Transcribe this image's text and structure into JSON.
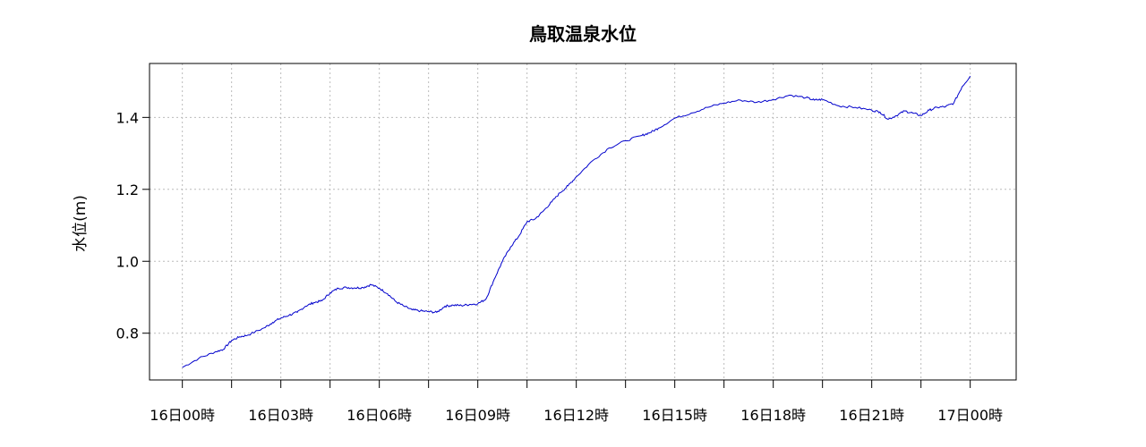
{
  "chart_data": {
    "type": "line",
    "title": "鳥取温泉水位",
    "ylabel": "水位(m)",
    "xlabel": "",
    "xlim_hours": [
      -1,
      25.4
    ],
    "ylim": [
      0.67,
      1.55
    ],
    "yticks": [
      0.8,
      1.0,
      1.2,
      1.4
    ],
    "ytick_labels": [
      "0.8",
      "1.0",
      "1.2",
      "1.4"
    ],
    "xticks_hours": [
      0,
      3,
      6,
      9,
      12,
      15,
      18,
      21,
      24
    ],
    "xtick_labels": [
      "16日00時",
      "16日03時",
      "16日06時",
      "16日09時",
      "16日12時",
      "16日15時",
      "16日18時",
      "16日21時",
      "17日00時"
    ],
    "grid": true,
    "line_color": "#0000cc",
    "series": [
      {
        "x": [
          0,
          0.5,
          1,
          1.25,
          1.5,
          1.75,
          2,
          2.5,
          2.75,
          3,
          3.25,
          3.5,
          3.75,
          4,
          4.25,
          4.5,
          4.75,
          5,
          5.25,
          5.5,
          5.75,
          6,
          6.25,
          6.5,
          6.75,
          7,
          7.25,
          7.5,
          7.75,
          8,
          8.25,
          8.5,
          8.75,
          9,
          9.25,
          9.5,
          9.75,
          10,
          10.25,
          10.5,
          10.75,
          11,
          11.25,
          11.5,
          11.75,
          12,
          12.5,
          13,
          13.5,
          14,
          14.25,
          14.5,
          15,
          15.5,
          16,
          16.5,
          17,
          17.5,
          18,
          18.5,
          19,
          19.25,
          19.5,
          20,
          20.5,
          21,
          21.25,
          21.5,
          21.75,
          22,
          22.25,
          22.5,
          22.75,
          23,
          23.25,
          23.5,
          23.75,
          24
        ],
        "y": [
          0.705,
          0.73,
          0.748,
          0.755,
          0.78,
          0.79,
          0.795,
          0.815,
          0.83,
          0.842,
          0.85,
          0.858,
          0.875,
          0.885,
          0.89,
          0.912,
          0.925,
          0.927,
          0.926,
          0.927,
          0.935,
          0.925,
          0.91,
          0.888,
          0.875,
          0.865,
          0.862,
          0.86,
          0.858,
          0.875,
          0.878,
          0.877,
          0.88,
          0.882,
          0.895,
          0.95,
          1.0,
          1.04,
          1.07,
          1.11,
          1.118,
          1.14,
          1.165,
          1.19,
          1.21,
          1.235,
          1.28,
          1.315,
          1.335,
          1.35,
          1.358,
          1.37,
          1.398,
          1.412,
          1.428,
          1.44,
          1.448,
          1.442,
          1.45,
          1.462,
          1.455,
          1.448,
          1.45,
          1.432,
          1.428,
          1.42,
          1.415,
          1.395,
          1.405,
          1.418,
          1.412,
          1.405,
          1.42,
          1.428,
          1.43,
          1.44,
          1.485,
          1.515
        ]
      }
    ]
  }
}
